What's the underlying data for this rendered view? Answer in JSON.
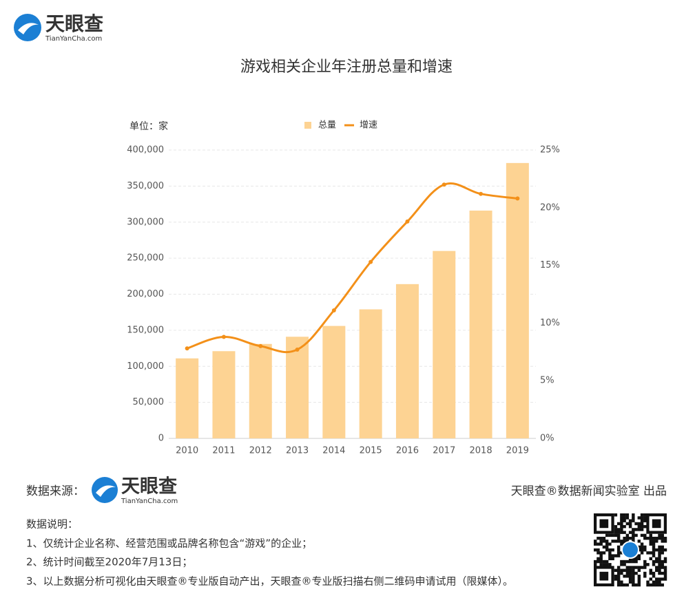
{
  "header": {
    "logo": "天眼查",
    "logo_url": "TianYanCha.com"
  },
  "chart_data": {
    "type": "bar_line",
    "title": "游戏相关企业年注册总量和增速",
    "y_unit": "单位：家",
    "categories": [
      "2010",
      "2011",
      "2012",
      "2013",
      "2014",
      "2015",
      "2016",
      "2017",
      "2018",
      "2019"
    ],
    "series": [
      {
        "name": "总量",
        "type": "bar",
        "color": "#fdd393",
        "axis": "y",
        "values": [
          111000,
          121000,
          131000,
          141000,
          156000,
          179000,
          214000,
          260000,
          316000,
          382000
        ]
      },
      {
        "name": "增速",
        "type": "line",
        "color": "#f39019",
        "axis": "y2",
        "values": [
          7.8,
          8.8,
          8.0,
          7.7,
          11.1,
          15.3,
          18.8,
          22.0,
          21.2,
          20.8
        ]
      }
    ],
    "ylim": [
      0,
      400000
    ],
    "yticks": [
      0,
      {
        "value": 50000,
        "label": "50,000"
      },
      {
        "value": 100000,
        "label": "100,000"
      },
      {
        "value": 150000,
        "label": "150,000"
      },
      {
        "value": 200000,
        "label": "200,000"
      },
      {
        "value": 250000,
        "label": "250,000"
      },
      {
        "value": 300000,
        "label": "300,000"
      },
      {
        "value": 350000,
        "label": "350,000"
      },
      {
        "value": 400000,
        "label": "400,000"
      }
    ],
    "y2lim": [
      0,
      25
    ],
    "y2ticks": [
      {
        "value": 0,
        "label": "0%"
      },
      {
        "value": 5,
        "label": "5%"
      },
      {
        "value": 10,
        "label": "10%"
      },
      {
        "value": 15,
        "label": "15%"
      },
      {
        "value": 20,
        "label": "20%"
      },
      {
        "value": 25,
        "label": "25%"
      }
    ],
    "grid": true,
    "legend": "top"
  },
  "source": {
    "label": "数据来源：",
    "logo": "天眼查",
    "logo_url": "TianYanCha.com",
    "credit": "天眼查®数据新闻实验室 出品"
  },
  "notes": {
    "title": "数据说明：",
    "items": [
      "1、仅统计企业名称、经营范围或品牌名称包含“游戏”的企业；",
      "2、统计时间截至2020年7月13日；",
      "3、以上数据分析可视化由天眼查®专业版自动产出，天眼查®专业版扫描右侧二维码申请试用（限媒体）。"
    ]
  }
}
